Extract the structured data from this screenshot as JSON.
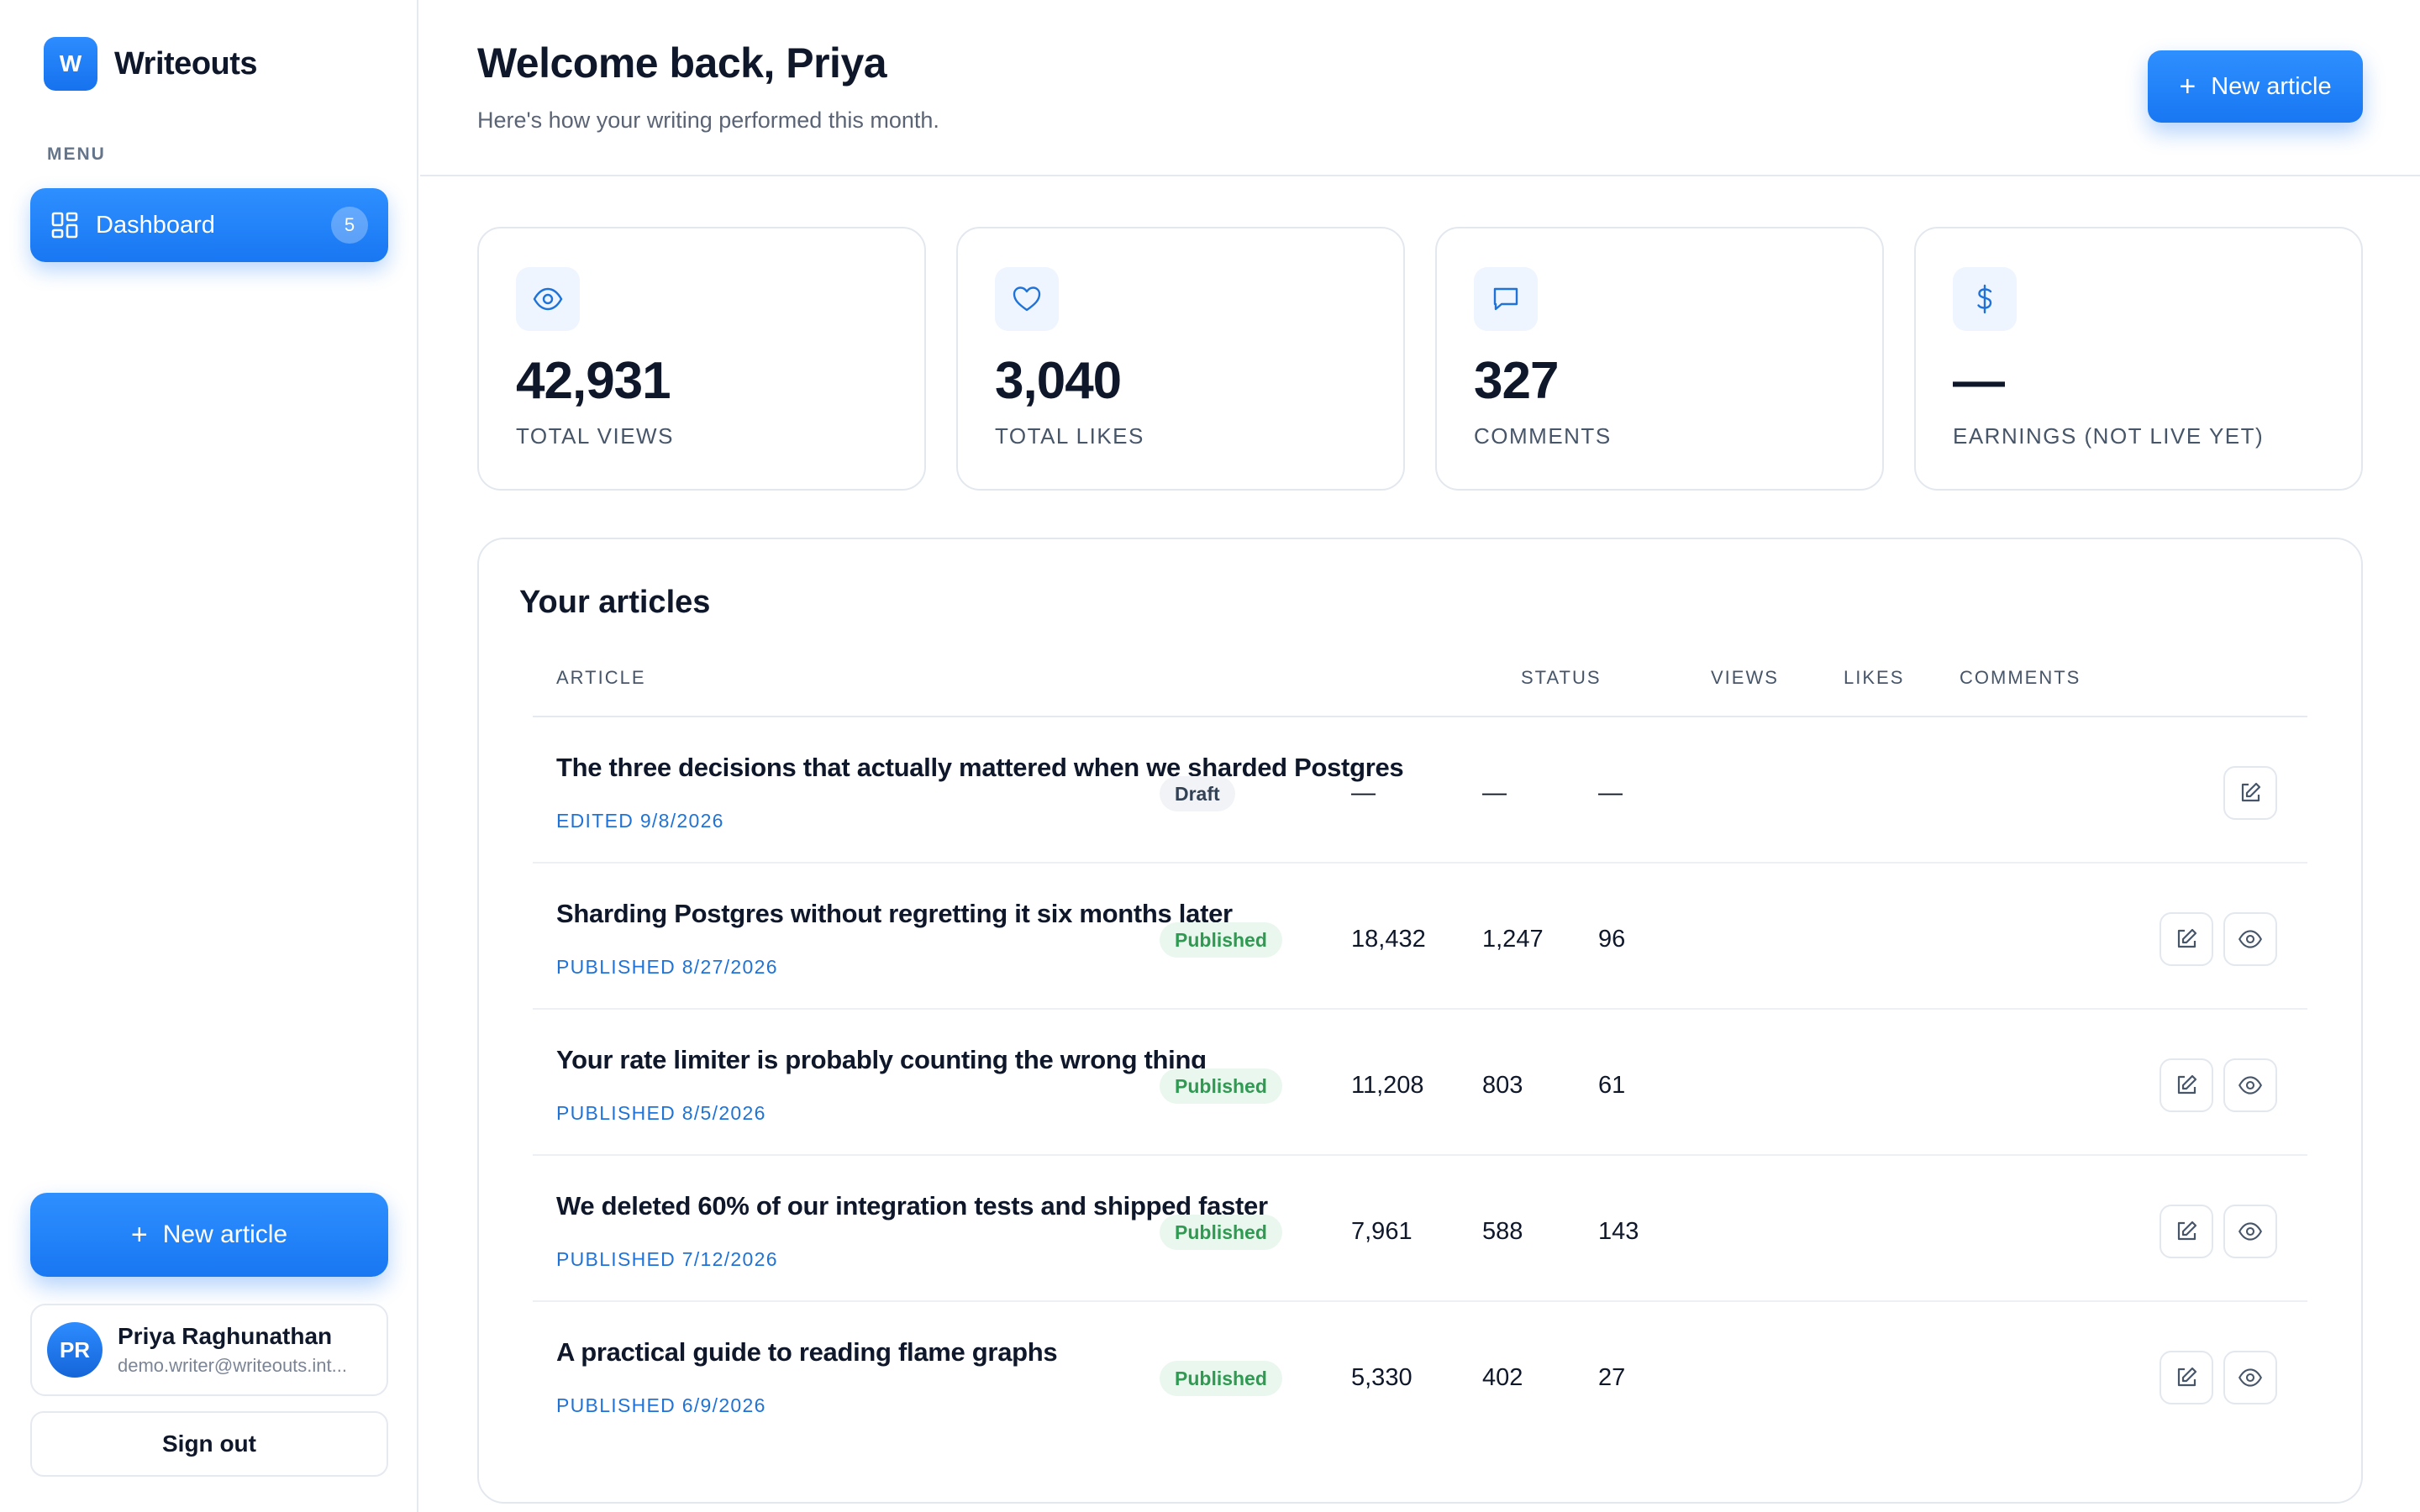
{
  "app": {
    "name": "Writeouts",
    "logo_letter": "W"
  },
  "sidebar": {
    "menu_label": "MENU",
    "nav": [
      {
        "label": "Dashboard",
        "badge": "5",
        "icon": "dashboard-grid-icon",
        "active": true
      }
    ],
    "new_article_label": "New article",
    "user": {
      "initials": "PR",
      "name": "Priya Raghunathan",
      "email": "demo.writer@writeouts.int..."
    },
    "sign_out_label": "Sign out"
  },
  "header": {
    "title": "Welcome back, Priya",
    "subtitle": "Here's how your writing performed this month.",
    "new_article_label": "New article"
  },
  "stats": [
    {
      "icon": "eye-icon",
      "value": "42,931",
      "label": "TOTAL VIEWS"
    },
    {
      "icon": "heart-icon",
      "value": "3,040",
      "label": "TOTAL LIKES"
    },
    {
      "icon": "comment-icon",
      "value": "327",
      "label": "COMMENTS"
    },
    {
      "icon": "dollar-icon",
      "value": "—",
      "label": "EARNINGS (NOT LIVE YET)"
    }
  ],
  "articles": {
    "title": "Your articles",
    "columns": {
      "article": "ARTICLE",
      "status": "STATUS",
      "views": "VIEWS",
      "likes": "LIKES",
      "comments": "COMMENTS"
    },
    "rows": [
      {
        "title": "The three decisions that actually mattered when we sharded Postgres",
        "meta": "EDITED 9/8/2026",
        "status": "Draft",
        "views": "—",
        "likes": "—",
        "comments": "—"
      },
      {
        "title": "Sharding Postgres without regretting it six months later",
        "meta": "PUBLISHED 8/27/2026",
        "status": "Published",
        "views": "18,432",
        "likes": "1,247",
        "comments": "96"
      },
      {
        "title": "Your rate limiter is probably counting the wrong thing",
        "meta": "PUBLISHED 8/5/2026",
        "status": "Published",
        "views": "11,208",
        "likes": "803",
        "comments": "61"
      },
      {
        "title": "We deleted 60% of our integration tests and shipped faster",
        "meta": "PUBLISHED 7/12/2026",
        "status": "Published",
        "views": "7,961",
        "likes": "588",
        "comments": "143"
      },
      {
        "title": "A practical guide to reading flame graphs",
        "meta": "PUBLISHED 6/9/2026",
        "status": "Published",
        "views": "5,330",
        "likes": "402",
        "comments": "27"
      }
    ]
  },
  "colors": {
    "accent": "#1877f2",
    "published_bg": "#eaf7ee",
    "published_text": "#2f9a52",
    "meta_text": "#1f73d8"
  }
}
